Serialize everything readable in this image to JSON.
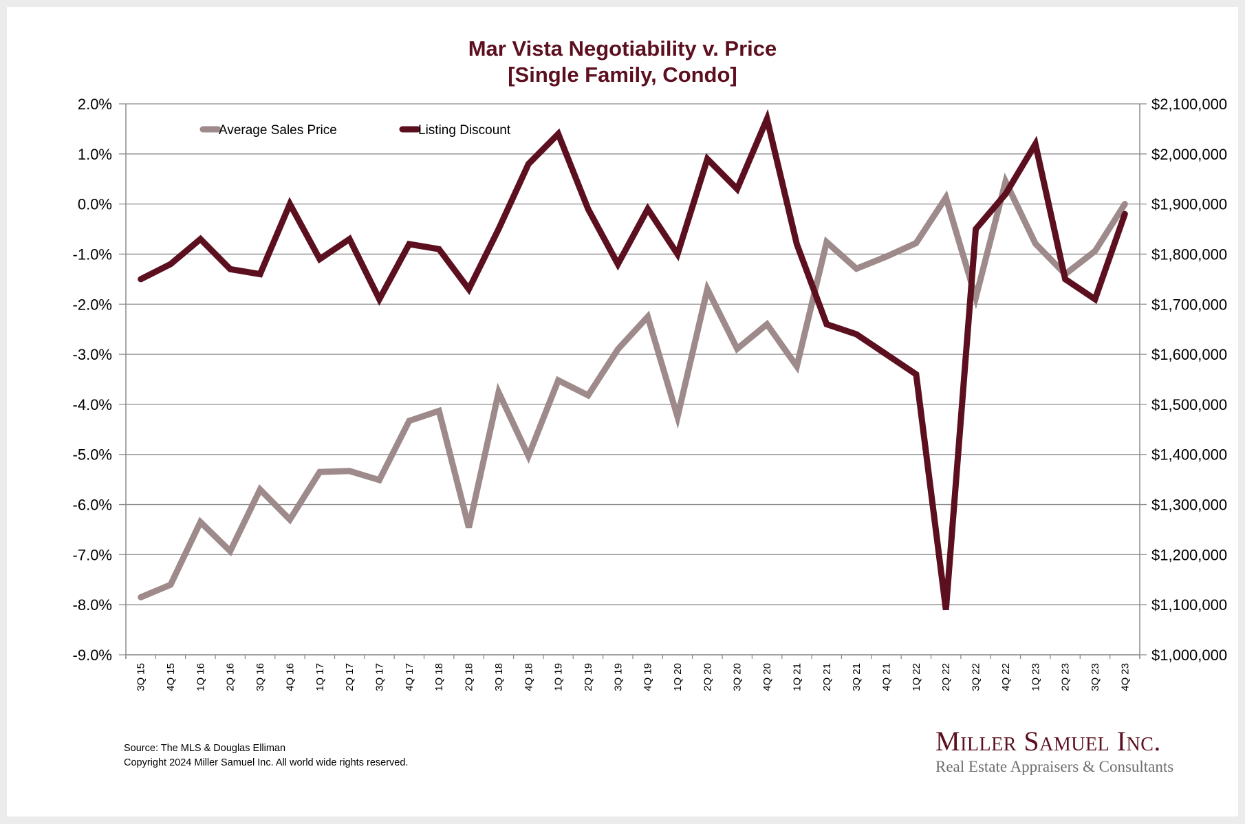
{
  "chart_data": {
    "type": "line",
    "title": "Mar Vista Negotiability v. Price",
    "subtitle": "[Single Family, Condo]",
    "categories": [
      "3Q 15",
      "4Q 15",
      "1Q 16",
      "2Q 16",
      "3Q 16",
      "4Q 16",
      "1Q 17",
      "2Q 17",
      "3Q 17",
      "4Q 17",
      "1Q 18",
      "2Q 18",
      "3Q 18",
      "4Q 18",
      "1Q 19",
      "2Q 19",
      "3Q 19",
      "4Q 19",
      "1Q 20",
      "2Q 20",
      "3Q 20",
      "4Q 20",
      "1Q 21",
      "2Q 21",
      "3Q 21",
      "4Q 21",
      "1Q 22",
      "2Q 22",
      "3Q 22",
      "4Q 22",
      "1Q 23",
      "2Q 23",
      "3Q 23",
      "4Q 23"
    ],
    "series": [
      {
        "name": "Average Sales Price",
        "axis": "right",
        "color": "#9e8a8a",
        "values": [
          1115000,
          1140000,
          1265000,
          1207000,
          1330000,
          1270000,
          1365000,
          1367000,
          1349000,
          1467000,
          1487000,
          1254000,
          1524000,
          1397000,
          1548000,
          1518000,
          1610000,
          1675000,
          1475000,
          1730000,
          1611000,
          1660000,
          1576000,
          1824000,
          1771000,
          1795000,
          1822000,
          1913000,
          1713000,
          1945000,
          1821000,
          1760000,
          1806000,
          1900000
        ]
      },
      {
        "name": "Listing Discount",
        "axis": "left",
        "color": "#5c0f1f",
        "values": [
          -1.5,
          -1.2,
          -0.7,
          -1.3,
          -1.4,
          0.0,
          -1.1,
          -0.7,
          -1.9,
          -0.8,
          -0.9,
          -1.7,
          -0.5,
          0.8,
          1.4,
          -0.1,
          -1.2,
          -0.1,
          -1.0,
          0.9,
          0.3,
          1.7,
          -0.8,
          -2.4,
          -2.6,
          -3.0,
          -3.4,
          -8.1,
          -0.5,
          0.2,
          1.2,
          -1.5,
          -1.9,
          -0.2
        ]
      }
    ],
    "y_left": {
      "label": "",
      "range": [
        -9.0,
        2.0
      ],
      "ticks": [
        "2.0%",
        "1.0%",
        "0.0%",
        "-1.0%",
        "-2.0%",
        "-3.0%",
        "-4.0%",
        "-5.0%",
        "-6.0%",
        "-7.0%",
        "-8.0%",
        "-9.0%"
      ],
      "tick_values": [
        2,
        1,
        0,
        -1,
        -2,
        -3,
        -4,
        -5,
        -6,
        -7,
        -8,
        -9
      ]
    },
    "y_right": {
      "label": "",
      "range": [
        1000000,
        2100000
      ],
      "ticks": [
        "$2,100,000",
        "$2,000,000",
        "$1,900,000",
        "$1,800,000",
        "$1,700,000",
        "$1,600,000",
        "$1,500,000",
        "$1,400,000",
        "$1,300,000",
        "$1,200,000",
        "$1,100,000",
        "$1,000,000"
      ],
      "tick_values": [
        2100000,
        2000000,
        1900000,
        1800000,
        1700000,
        1600000,
        1500000,
        1400000,
        1300000,
        1200000,
        1100000,
        1000000
      ]
    },
    "xlabel": "",
    "grid": true,
    "legend": {
      "placement": "top-left",
      "entries": [
        "Average Sales Price",
        "Listing Discount"
      ]
    }
  },
  "footer": {
    "source": "Source: The MLS & Douglas Elliman",
    "copyright": "Copyright 2024 Miller Samuel Inc.  All world wide rights reserved."
  },
  "logo": {
    "name": "Miller Samuel Inc.",
    "tagline": "Real Estate Appraisers & Consultants"
  },
  "colors": {
    "title": "#5c0f1f",
    "grid": "#8c8c8c",
    "background": "#ececec"
  }
}
